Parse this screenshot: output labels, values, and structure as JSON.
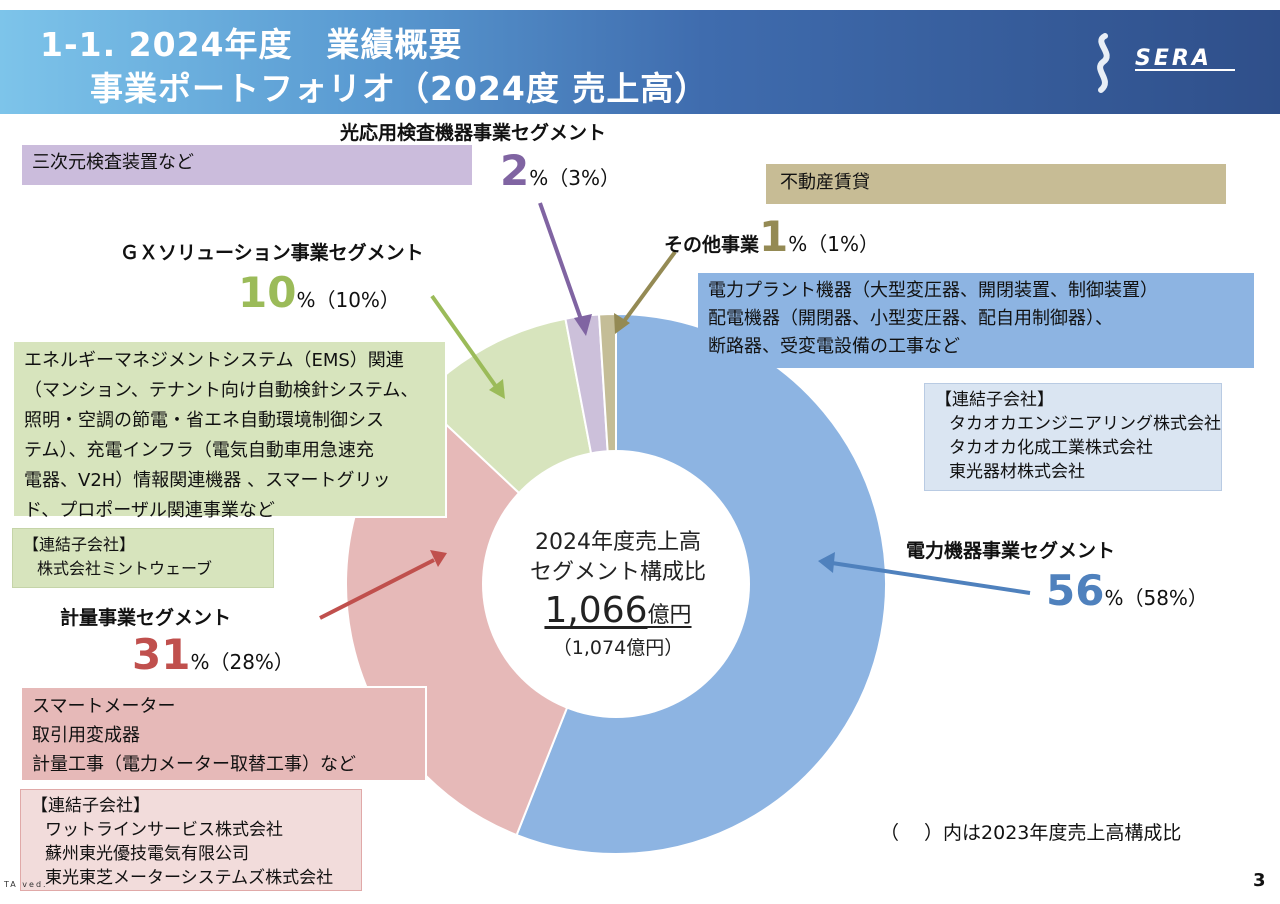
{
  "header": {
    "title_line1": "1-1. 2024年度　業績概要",
    "title_line2": "事業ポートフォリオ（2024度 売上高）",
    "logo_text": "SERA"
  },
  "center": {
    "line1": "2024年度売上高",
    "line2": "セグメント構成比",
    "amount": "1,066",
    "amount_unit": "億円",
    "previous": "（1,074億円）"
  },
  "segments": {
    "optical": {
      "label": "光応用検査機器事業セグメント",
      "pct": "2",
      "pct_sign": "%",
      "prev": "（3%）",
      "description": "三次元検査装置など",
      "color": "#8064a2"
    },
    "other": {
      "label": "その他事業",
      "pct": "1",
      "pct_sign": "%",
      "prev": "（1%）",
      "description": "不動産賃貸",
      "color": "#948a54"
    },
    "gx": {
      "label": "ＧＸソリューション事業セグメント",
      "pct": "10",
      "pct_sign": "%",
      "prev": "（10%）",
      "description": [
        "エネルギーマネジメントシステム（EMS）関連",
        "（マンション、テナント向け自動検針システム、",
        "照明・空調の節電・省エネ自動環境制御シス",
        "テム）、充電インフラ（電気自動車用急速充",
        "電器、V2H）情報関連機器 、スマートグリッ",
        "ド、プロポーザル関連事業など"
      ],
      "subsidiaries_title": "【連結子会社】",
      "subsidiaries": [
        "株式会社ミントウェーブ"
      ],
      "color": "#9bbb59"
    },
    "power": {
      "label": "電力機器事業セグメント",
      "pct": "56",
      "pct_sign": "%",
      "prev": "（58%）",
      "description": [
        "電力プラント機器（大型変圧器、開閉装置、制御装置）",
        "配電機器（開閉器、小型変圧器、配自用制御器）、",
        "断路器、受変電設備の工事など"
      ],
      "subsidiaries_title": "【連結子会社】",
      "subsidiaries": [
        "タカオカエンジニアリング株式会社",
        "タカオカ化成工業株式会社",
        "東光器材株式会社"
      ],
      "color": "#4f81bd"
    },
    "metering": {
      "label": "計量事業セグメント",
      "pct": "31",
      "pct_sign": "%",
      "prev": "（28%）",
      "description": [
        "スマートメーター",
        "取引用変成器",
        "計量工事（電力メーター取替工事）など"
      ],
      "subsidiaries_title": "【連結子会社】",
      "subsidiaries": [
        "ワットラインサービス株式会社",
        "蘇州東光優技電気有限公司",
        "東光東芝メーターシステムズ株式会社"
      ],
      "color": "#c0504d"
    }
  },
  "chart_data": {
    "type": "pie",
    "title": "2024年度売上高 セグメント構成比",
    "slices": [
      {
        "name": "電力機器事業セグメント",
        "value": 56,
        "prev_value": 58,
        "color": "#8db4e2"
      },
      {
        "name": "計量事業セグメント",
        "value": 31,
        "prev_value": 28,
        "color": "#e6b9b8"
      },
      {
        "name": "ＧＸソリューション事業セグメント",
        "value": 10,
        "prev_value": 10,
        "color": "#d7e4bd"
      },
      {
        "name": "光応用検査機器事業セグメント",
        "value": 2,
        "prev_value": 3,
        "color": "#ccc0da"
      },
      {
        "name": "その他事業",
        "value": 1,
        "prev_value": 1,
        "color": "#c4bd97"
      }
    ],
    "start": "top",
    "direction": "clockwise",
    "total": "1,066億円",
    "prev_total": "1,074億円"
  },
  "footer": {
    "note": "（　 ）内は2023年度売上高構成比",
    "page_number": "3",
    "copyright": "TA                                                                                                       ved."
  }
}
